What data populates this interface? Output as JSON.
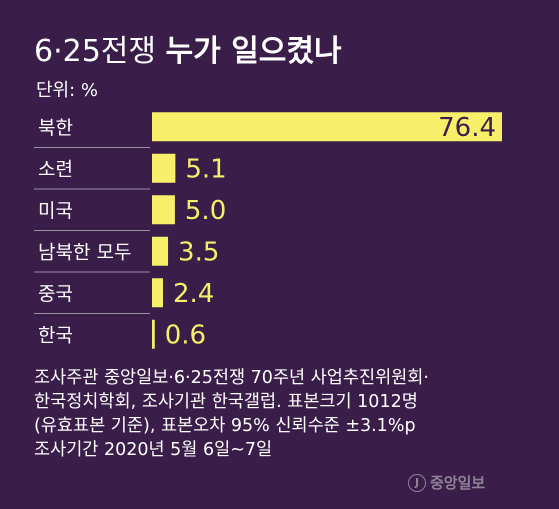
{
  "title": {
    "prefix": "6·25전쟁",
    "emphasis": "누가 일으켰나"
  },
  "unit_label": "단위: %",
  "chart_data": {
    "type": "bar",
    "orientation": "horizontal",
    "categories": [
      "북한",
      "소련",
      "미국",
      "남북한 모두",
      "중국",
      "한국"
    ],
    "values": [
      76.4,
      5.1,
      5.0,
      3.5,
      2.4,
      0.6
    ],
    "value_labels": [
      "76.4",
      "5.1",
      "5.0",
      "3.5",
      "2.4",
      "0.6"
    ],
    "xlim": [
      0,
      80
    ],
    "bar_color": "#f7ef6a",
    "label_color": "#f7ef6a",
    "grid": false
  },
  "footnote": [
    "조사주관  중앙일보·6·25전쟁 70주년 사업추진위원회·",
    "한국정치학회, 조사기관  한국갤럽. 표본크기  1012명",
    "(유효표본  기준), 표본오차  95% 신뢰수준  ±3.1%p",
    "조사기간  2020년  5월  6일~7일"
  ],
  "brand": {
    "mark": "J",
    "name": "중앙일보"
  },
  "colors": {
    "background": "#3b1d4a",
    "text": "#ffffff",
    "brand": "#8f8196"
  }
}
